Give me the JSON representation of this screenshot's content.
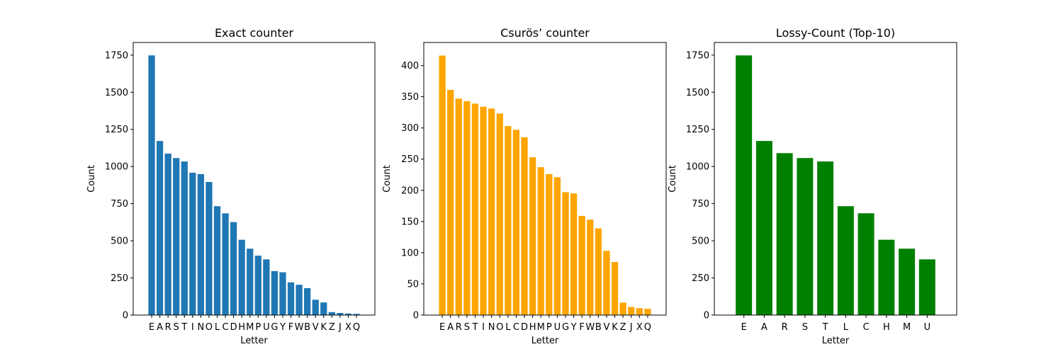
{
  "chart_data": [
    {
      "type": "bar",
      "title": "Exact counter",
      "xlabel": "Letter",
      "ylabel": "Count",
      "color": "#1f77b4",
      "ylim": [
        0,
        1835
      ],
      "yticks": [
        0,
        250,
        500,
        750,
        1000,
        1250,
        1500,
        1750
      ],
      "categories": [
        "E",
        "A",
        "R",
        "S",
        "T",
        "I",
        "N",
        "O",
        "L",
        "C",
        "D",
        "H",
        "M",
        "P",
        "U",
        "G",
        "Y",
        "F",
        "W",
        "B",
        "V",
        "K",
        "Z",
        "J",
        "X",
        "Q"
      ],
      "values": [
        1748,
        1172,
        1087,
        1057,
        1034,
        958,
        949,
        896,
        733,
        685,
        626,
        507,
        447,
        400,
        375,
        296,
        288,
        220,
        204,
        181,
        103,
        85,
        20,
        14,
        10,
        8
      ]
    },
    {
      "type": "bar",
      "title": "Csurös’ counter",
      "xlabel": "Letter",
      "ylabel": "Count",
      "color": "#ffa500",
      "ylim": [
        0,
        437
      ],
      "yticks": [
        0,
        50,
        100,
        150,
        200,
        250,
        300,
        350,
        400
      ],
      "categories": [
        "E",
        "A",
        "R",
        "S",
        "T",
        "I",
        "N",
        "O",
        "L",
        "C",
        "D",
        "H",
        "M",
        "P",
        "U",
        "G",
        "Y",
        "F",
        "W",
        "B",
        "V",
        "K",
        "Z",
        "J",
        "X",
        "Q"
      ],
      "values": [
        416,
        361,
        347,
        343,
        339,
        334,
        331,
        323,
        303,
        297,
        285,
        253,
        237,
        226,
        221,
        197,
        195,
        159,
        153,
        139,
        103,
        85,
        20,
        13,
        11,
        10
      ]
    },
    {
      "type": "bar",
      "title": "Lossy-Count (Top-10)",
      "xlabel": "Letter",
      "ylabel": "Count",
      "color": "#008000",
      "ylim": [
        0,
        1835
      ],
      "yticks": [
        0,
        250,
        500,
        750,
        1000,
        1250,
        1500,
        1750
      ],
      "categories": [
        "E",
        "A",
        "R",
        "S",
        "T",
        "L",
        "C",
        "H",
        "M",
        "U"
      ],
      "values": [
        1748,
        1172,
        1090,
        1057,
        1034,
        733,
        685,
        507,
        447,
        375
      ]
    }
  ]
}
